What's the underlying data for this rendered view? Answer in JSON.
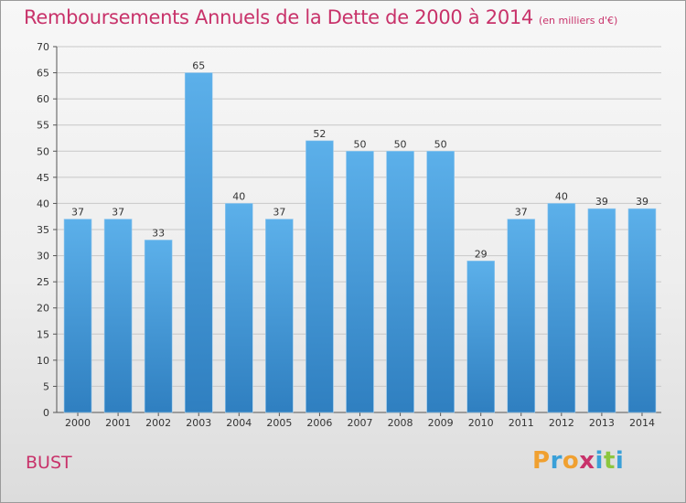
{
  "title": "Remboursements Annuels de la Dette de 2000 à 2014",
  "unit": "(en milliers d'€)",
  "commune": "BUST",
  "logo": {
    "text": "Proxiti",
    "letters": [
      {
        "ch": "P",
        "color": "#f0a030"
      },
      {
        "ch": "r",
        "color": "#3aa0d8"
      },
      {
        "ch": "o",
        "color": "#f0a030"
      },
      {
        "ch": "x",
        "color": "#c8326a"
      },
      {
        "ch": "i",
        "color": "#3aa0d8"
      },
      {
        "ch": "t",
        "color": "#8cc63f"
      },
      {
        "ch": "i",
        "color": "#3aa0d8"
      }
    ]
  },
  "colors": {
    "title": "#c8326a",
    "bar_light": "#5cb0ea",
    "bar_dark": "#2f7fc0",
    "grid": "#c8c8c8"
  },
  "chart_data": {
    "type": "bar",
    "title": "Remboursements Annuels de la Dette de 2000 à 2014",
    "categories": [
      "2000",
      "2001",
      "2002",
      "2003",
      "2004",
      "2005",
      "2006",
      "2007",
      "2008",
      "2009",
      "2010",
      "2011",
      "2012",
      "2013",
      "2014"
    ],
    "values": [
      37,
      37,
      33,
      65,
      40,
      37,
      52,
      50,
      50,
      50,
      29,
      37,
      40,
      39,
      39
    ],
    "ylim": [
      0,
      70
    ],
    "yticks": [
      0,
      5,
      10,
      15,
      20,
      25,
      30,
      35,
      40,
      45,
      50,
      55,
      60,
      65,
      70
    ],
    "grid": true,
    "data_labels": true
  }
}
